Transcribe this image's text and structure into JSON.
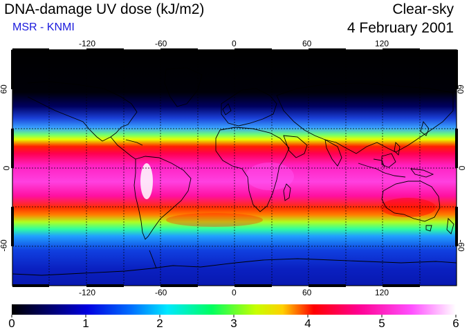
{
  "header": {
    "title": "DNA-damage UV dose (kJ/m2)",
    "subtitle": "MSR - KNMI",
    "sky_condition": "Clear-sky",
    "date": "4 February 2001"
  },
  "map": {
    "projection": "equirectangular",
    "lon_range": [
      -180,
      180
    ],
    "lat_range": [
      -90,
      90
    ],
    "lon_ticks": [
      "-120",
      "-60",
      "0",
      "60",
      "120"
    ],
    "lat_ticks": [
      "60",
      "0",
      "-60"
    ],
    "lat_ticks_right": [
      "60",
      "0",
      "-60"
    ],
    "graticule": "dashed, every 30 degrees",
    "coastlines": true
  },
  "colorbar": {
    "labels": [
      "0",
      "1",
      "2",
      "3",
      "4",
      "5",
      "6"
    ],
    "min": 0,
    "max": 6,
    "colors": [
      "#000000",
      "#0000c8",
      "#0060ff",
      "#00e8ff",
      "#00ff60",
      "#c8ff00",
      "#ff0000",
      "#ff0090",
      "#ff50ff",
      "#ffffff"
    ]
  },
  "colors": {
    "title_text": "#000000",
    "subtitle_text": "#1a1adc"
  }
}
